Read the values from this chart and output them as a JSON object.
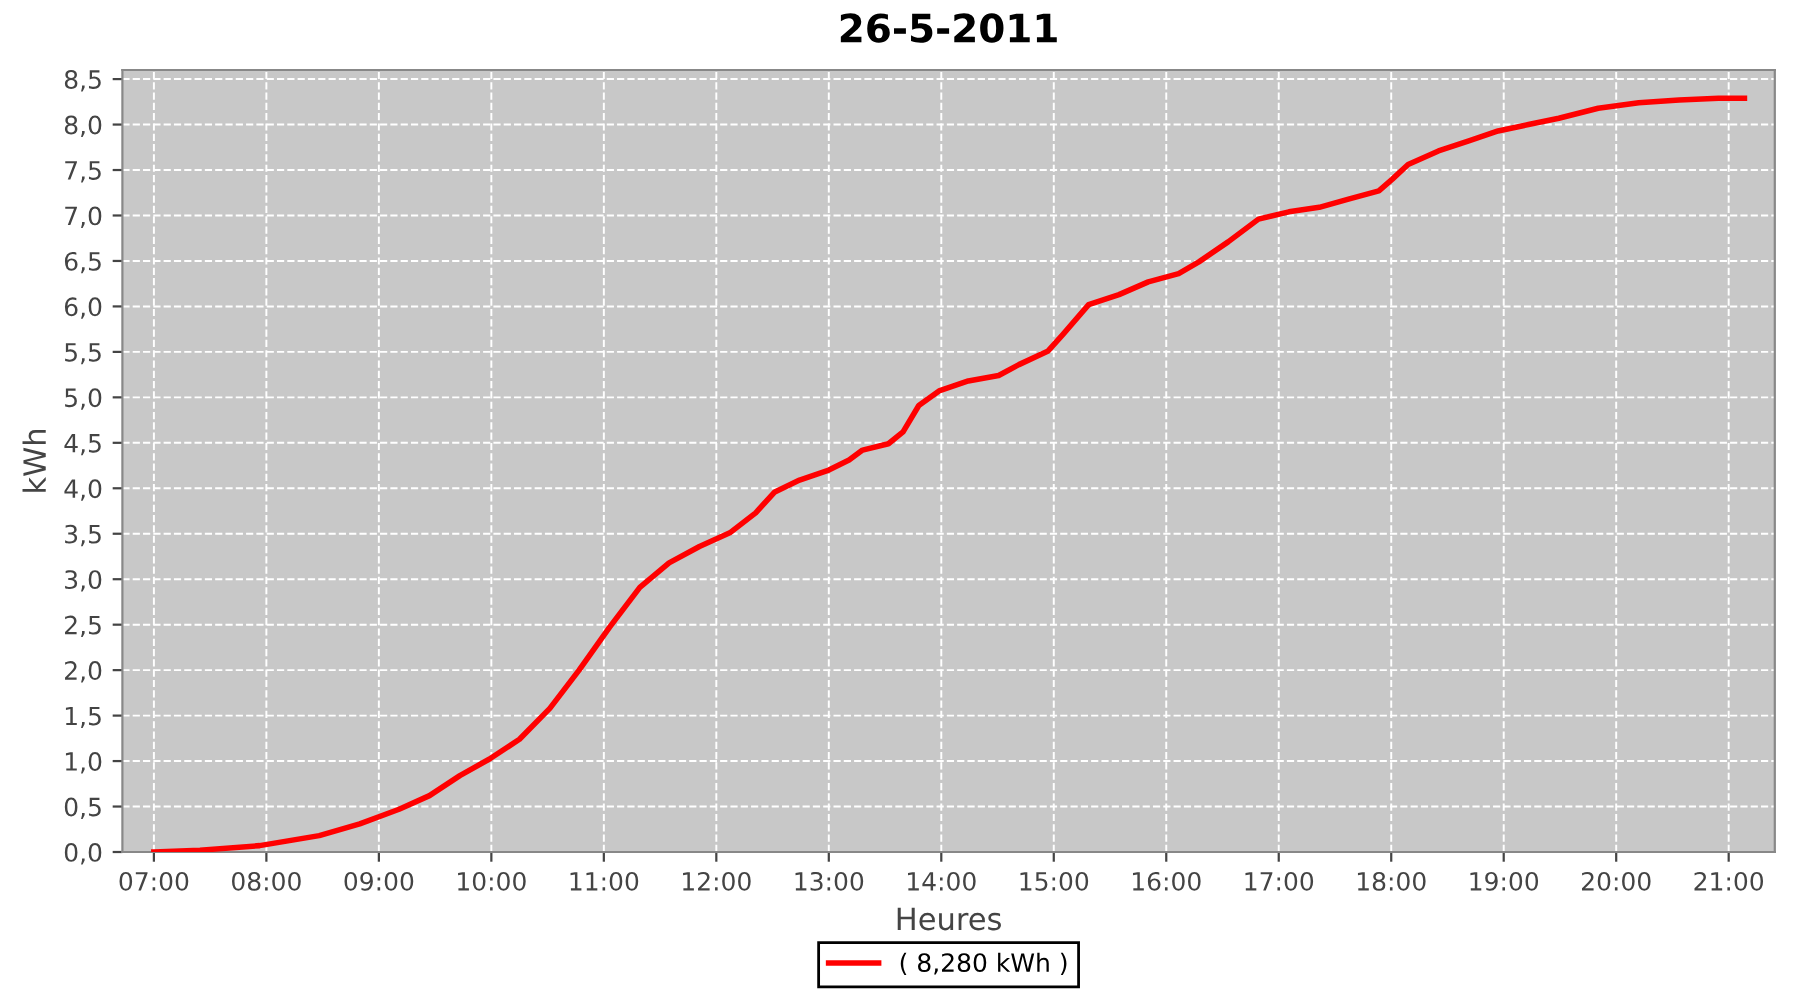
{
  "chart_data": {
    "type": "line",
    "title": "26-5-2011",
    "xlabel": "Heures",
    "ylabel": "kWh",
    "xlim": [
      6.72,
      21.41
    ],
    "ylim": [
      0,
      8.6
    ],
    "xticks": [
      {
        "value": 7,
        "label": "07:00"
      },
      {
        "value": 8,
        "label": "08:00"
      },
      {
        "value": 9,
        "label": "09:00"
      },
      {
        "value": 10,
        "label": "10:00"
      },
      {
        "value": 11,
        "label": "11:00"
      },
      {
        "value": 12,
        "label": "12:00"
      },
      {
        "value": 13,
        "label": "13:00"
      },
      {
        "value": 14,
        "label": "14:00"
      },
      {
        "value": 15,
        "label": "15:00"
      },
      {
        "value": 16,
        "label": "16:00"
      },
      {
        "value": 17,
        "label": "17:00"
      },
      {
        "value": 18,
        "label": "18:00"
      },
      {
        "value": 19,
        "label": "19:00"
      },
      {
        "value": 20,
        "label": "20:00"
      },
      {
        "value": 21,
        "label": "21:00"
      }
    ],
    "yticks": [
      {
        "value": 0,
        "label": "0,0"
      },
      {
        "value": 0.5,
        "label": "0,5"
      },
      {
        "value": 1,
        "label": "1,0"
      },
      {
        "value": 1.5,
        "label": "1,5"
      },
      {
        "value": 2,
        "label": "2,0"
      },
      {
        "value": 2.5,
        "label": "2,5"
      },
      {
        "value": 3,
        "label": "3,0"
      },
      {
        "value": 3.5,
        "label": "3,5"
      },
      {
        "value": 4,
        "label": "4,0"
      },
      {
        "value": 4.5,
        "label": "4,5"
      },
      {
        "value": 5,
        "label": "5,0"
      },
      {
        "value": 5.5,
        "label": "5,5"
      },
      {
        "value": 6,
        "label": "6,0"
      },
      {
        "value": 6.5,
        "label": "6,5"
      },
      {
        "value": 7,
        "label": "7,0"
      },
      {
        "value": 7.5,
        "label": "7,5"
      },
      {
        "value": 8,
        "label": "8,0"
      },
      {
        "value": 8.5,
        "label": "8,5"
      }
    ],
    "grid": true,
    "legend": "bottom",
    "line_style": "solid",
    "series": [
      {
        "name": "( 8,280 kWh )",
        "color": "#ff0000",
        "x": [
          7.0,
          7.41,
          7.94,
          8.47,
          8.83,
          9.18,
          9.45,
          9.72,
          9.98,
          10.25,
          10.52,
          10.78,
          11.05,
          11.32,
          11.58,
          11.85,
          12.12,
          12.35,
          12.52,
          12.74,
          13.0,
          13.18,
          13.3,
          13.53,
          13.66,
          13.8,
          13.98,
          14.24,
          14.51,
          14.69,
          14.95,
          15.08,
          15.31,
          15.58,
          15.84,
          16.11,
          16.29,
          16.55,
          16.82,
          17.09,
          17.36,
          17.62,
          17.89,
          18.01,
          18.15,
          18.42,
          18.69,
          18.95,
          19.22,
          19.49,
          19.84,
          20.2,
          20.56,
          20.91,
          21.14
        ],
        "values": [
          0,
          0.02,
          0.07,
          0.18,
          0.31,
          0.47,
          0.62,
          0.84,
          1.02,
          1.24,
          1.58,
          2.0,
          2.47,
          2.91,
          3.18,
          3.36,
          3.51,
          3.73,
          3.96,
          4.09,
          4.2,
          4.31,
          4.42,
          4.49,
          4.62,
          4.91,
          5.07,
          5.18,
          5.24,
          5.36,
          5.51,
          5.69,
          6.02,
          6.13,
          6.27,
          6.36,
          6.49,
          6.71,
          6.96,
          7.04,
          7.09,
          7.18,
          7.27,
          7.4,
          7.56,
          7.71,
          7.82,
          7.93,
          8.0,
          8.07,
          8.18,
          8.24,
          8.27,
          8.29,
          8.29
        ]
      }
    ]
  }
}
